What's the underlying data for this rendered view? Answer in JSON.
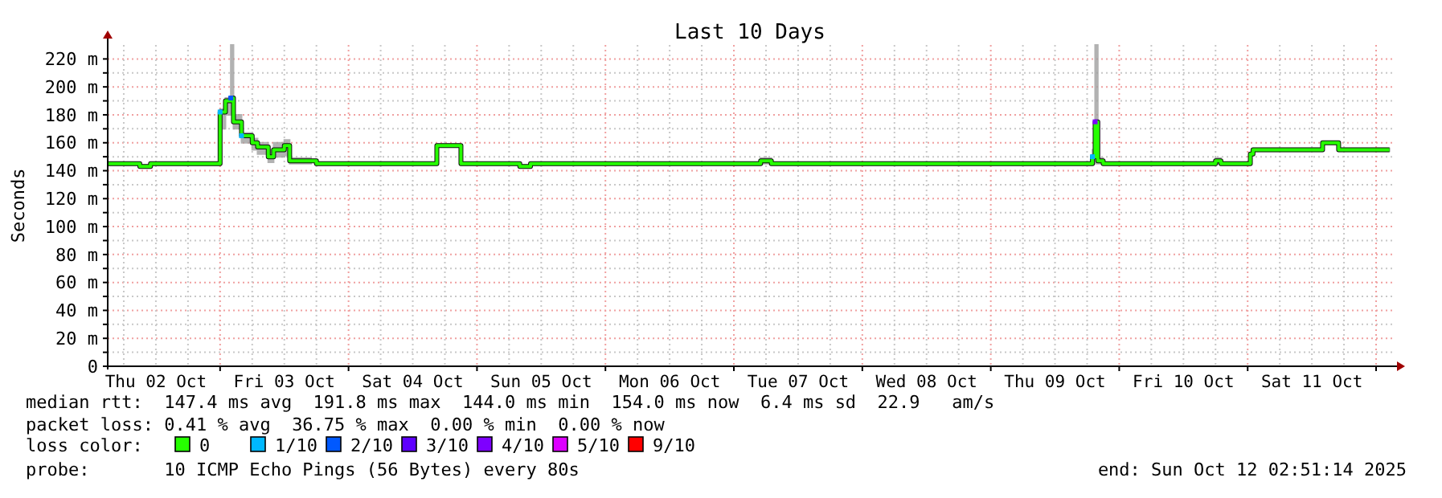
{
  "chart_data": {
    "type": "step",
    "title": "Last 10 Days",
    "ylabel": "Seconds",
    "legend_title": "loss color:",
    "legend": "bottom",
    "grid": true,
    "line_style": "solid",
    "xlim": [
      "2025-10-02T03:00",
      "2025-10-12T03:00"
    ],
    "xticks": [
      {
        "value": "2025-10-02T06:00",
        "label": null
      },
      {
        "value": "2025-10-02T12:00",
        "label": "Thu 02 Oct"
      },
      {
        "value": "2025-10-02T18:00",
        "label": null
      },
      {
        "value": "2025-10-03T00:00",
        "label": null
      },
      {
        "value": "2025-10-03T06:00",
        "label": null
      },
      {
        "value": "2025-10-03T12:00",
        "label": "Fri 03 Oct"
      },
      {
        "value": "2025-10-03T18:00",
        "label": null
      },
      {
        "value": "2025-10-04T00:00",
        "label": null
      },
      {
        "value": "2025-10-04T06:00",
        "label": null
      },
      {
        "value": "2025-10-04T12:00",
        "label": "Sat 04 Oct"
      },
      {
        "value": "2025-10-04T18:00",
        "label": null
      },
      {
        "value": "2025-10-05T00:00",
        "label": null
      },
      {
        "value": "2025-10-05T06:00",
        "label": null
      },
      {
        "value": "2025-10-05T12:00",
        "label": "Sun 05 Oct"
      },
      {
        "value": "2025-10-05T18:00",
        "label": null
      },
      {
        "value": "2025-10-06T00:00",
        "label": null
      },
      {
        "value": "2025-10-06T06:00",
        "label": null
      },
      {
        "value": "2025-10-06T12:00",
        "label": "Mon 06 Oct"
      },
      {
        "value": "2025-10-06T18:00",
        "label": null
      },
      {
        "value": "2025-10-07T00:00",
        "label": null
      },
      {
        "value": "2025-10-07T06:00",
        "label": null
      },
      {
        "value": "2025-10-07T12:00",
        "label": "Tue 07 Oct"
      },
      {
        "value": "2025-10-07T18:00",
        "label": null
      },
      {
        "value": "2025-10-08T00:00",
        "label": null
      },
      {
        "value": "2025-10-08T06:00",
        "label": null
      },
      {
        "value": "2025-10-08T12:00",
        "label": "Wed 08 Oct"
      },
      {
        "value": "2025-10-08T18:00",
        "label": null
      },
      {
        "value": "2025-10-09T00:00",
        "label": null
      },
      {
        "value": "2025-10-09T06:00",
        "label": null
      },
      {
        "value": "2025-10-09T12:00",
        "label": "Thu 09 Oct"
      },
      {
        "value": "2025-10-09T18:00",
        "label": null
      },
      {
        "value": "2025-10-10T00:00",
        "label": null
      },
      {
        "value": "2025-10-10T06:00",
        "label": null
      },
      {
        "value": "2025-10-10T12:00",
        "label": "Fri 10 Oct"
      },
      {
        "value": "2025-10-10T18:00",
        "label": null
      },
      {
        "value": "2025-10-11T00:00",
        "label": null
      },
      {
        "value": "2025-10-11T06:00",
        "label": null
      },
      {
        "value": "2025-10-11T12:00",
        "label": "Sat 11 Oct"
      },
      {
        "value": "2025-10-11T18:00",
        "label": null
      },
      {
        "value": "2025-10-12T00:00",
        "label": null
      }
    ],
    "ylim": [
      0,
      230
    ],
    "yticks": [
      {
        "value": 0,
        "label": "0"
      },
      {
        "value": 10,
        "label": null
      },
      {
        "value": 20,
        "label": "20 m"
      },
      {
        "value": 30,
        "label": null
      },
      {
        "value": 40,
        "label": "40 m"
      },
      {
        "value": 50,
        "label": null
      },
      {
        "value": 60,
        "label": "60 m"
      },
      {
        "value": 70,
        "label": null
      },
      {
        "value": 80,
        "label": "80 m"
      },
      {
        "value": 90,
        "label": null
      },
      {
        "value": 100,
        "label": "100 m"
      },
      {
        "value": 110,
        "label": null
      },
      {
        "value": 120,
        "label": "120 m"
      },
      {
        "value": 130,
        "label": null
      },
      {
        "value": 140,
        "label": "140 m"
      },
      {
        "value": 150,
        "label": null
      },
      {
        "value": 160,
        "label": "160 m"
      },
      {
        "value": 170,
        "label": null
      },
      {
        "value": 180,
        "label": "180 m"
      },
      {
        "value": 190,
        "label": null
      },
      {
        "value": 200,
        "label": "200 m"
      },
      {
        "value": 210,
        "label": null
      },
      {
        "value": 220,
        "label": "220 m"
      }
    ],
    "series": [
      {
        "name": "0",
        "color": "#26ff00",
        "x": [
          "2025-10-02T03:00",
          "2025-10-02T08:00",
          "2025-10-02T09:00",
          "2025-10-02T11:00",
          "2025-10-02T18:00",
          "2025-10-02T23:30",
          "2025-10-03T00:00",
          "2025-10-03T01:00",
          "2025-10-03T02:00",
          "2025-10-03T02:30",
          "2025-10-03T04:00",
          "2025-10-03T06:00",
          "2025-10-03T07:00",
          "2025-10-03T09:00",
          "2025-10-03T10:00",
          "2025-10-03T12:00",
          "2025-10-03T13:00",
          "2025-10-03T17:00",
          "2025-10-03T18:00",
          "2025-10-04T16:00",
          "2025-10-04T16:30",
          "2025-10-04T20:30",
          "2025-10-04T21:00",
          "2025-10-05T08:00",
          "2025-10-05T10:00",
          "2025-10-07T05:00",
          "2025-10-07T07:00",
          "2025-10-09T18:00",
          "2025-10-09T19:00",
          "2025-10-09T19:30",
          "2025-10-09T20:00",
          "2025-10-09T21:00",
          "2025-10-10T18:00",
          "2025-10-10T19:00",
          "2025-10-11T00:30",
          "2025-10-11T01:00",
          "2025-10-11T13:00",
          "2025-10-11T14:00",
          "2025-10-11T16:00",
          "2025-10-11T17:00",
          "2025-10-12T02:30"
        ],
        "values": [
          145,
          145,
          143,
          145,
          145,
          145,
          182,
          190,
          192,
          175,
          165,
          160,
          157,
          150,
          155,
          158,
          147,
          147,
          145,
          145,
          158,
          158,
          145,
          143,
          145,
          147,
          145,
          145,
          150,
          175,
          147,
          145,
          147,
          145,
          152,
          155,
          155,
          160,
          160,
          155,
          155
        ],
        "lower": [
          144,
          144,
          142,
          144,
          144,
          144,
          170,
          180,
          185,
          170,
          160,
          155,
          152,
          146,
          150,
          151,
          145,
          146,
          144,
          144,
          157,
          157,
          144,
          142,
          144,
          145,
          144,
          144,
          145,
          145,
          145,
          144,
          145,
          144,
          151,
          154,
          154,
          159,
          159,
          154,
          154
        ],
        "upper": [
          146,
          146,
          144,
          146,
          146,
          146,
          184,
          192,
          230,
          180,
          167,
          163,
          160,
          155,
          160,
          162,
          149,
          148,
          146,
          146,
          159,
          159,
          146,
          144,
          146,
          149,
          146,
          146,
          155,
          230,
          149,
          146,
          149,
          146,
          153,
          156,
          156,
          161,
          161,
          156,
          156
        ]
      },
      {
        "name": "1/10",
        "type": "scatter",
        "marker": "square",
        "color": "#00b8ff",
        "x": [
          "2025-10-03T00:00",
          "2025-10-03T04:00",
          "2025-10-09T19:00"
        ],
        "values": [
          182,
          165,
          150
        ]
      },
      {
        "name": "2/10",
        "type": "scatter",
        "marker": "square",
        "color": "#0059ff",
        "x": [
          "2025-10-03T02:00"
        ],
        "values": [
          192
        ]
      },
      {
        "name": "3/10",
        "type": "scatter",
        "color": "#5e00ff"
      },
      {
        "name": "4/10",
        "type": "scatter",
        "marker": "square",
        "color": "#7e00ff",
        "x": [
          "2025-10-09T19:30"
        ],
        "values": [
          175
        ]
      },
      {
        "name": "5/10",
        "type": "scatter",
        "color": "#dd00ff"
      },
      {
        "name": "9/10",
        "type": "scatter",
        "color": "#ff0000"
      }
    ],
    "annotations": [
      "median rtt:  147.4 ms avg  191.8 ms max  144.0 ms min  154.0 ms now  6.4 ms sd  22.9   am/s",
      "packet loss: 0.41 % avg  36.75 % max  0.00 % min  0.00 % now",
      "probe:       10 ICMP Echo Pings (56 Bytes) every 80s",
      "end: Sun Oct 12 02:51:14 2025"
    ]
  }
}
